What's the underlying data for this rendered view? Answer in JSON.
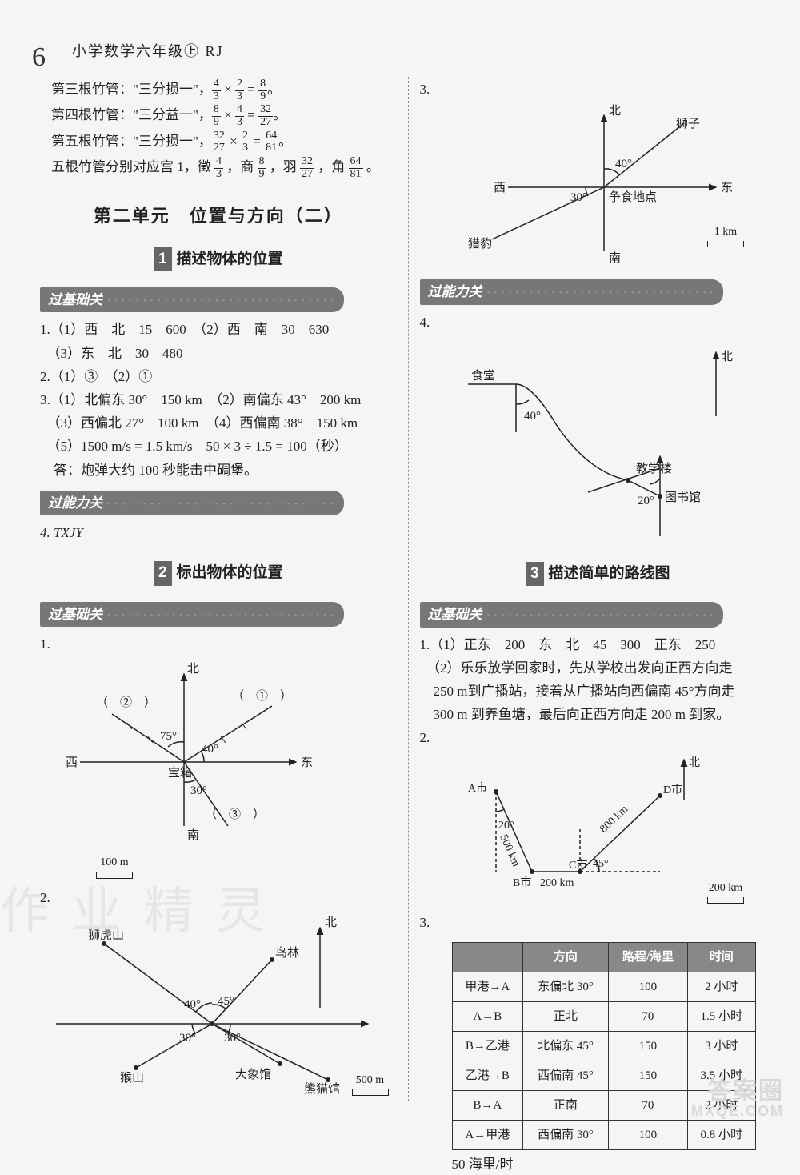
{
  "page_number": "6",
  "header": "小学数学六年级㊤ RJ",
  "intro_lines": [
    {
      "label": "第三根竹管：\"三分损一\"，",
      "frac1n": "4",
      "frac1d": "3",
      "op1": "×",
      "frac2n": "2",
      "frac2d": "3",
      "eq": "=",
      "frac3n": "8",
      "frac3d": "9",
      "tail": "。"
    },
    {
      "label": "第四根竹管：\"三分益一\"，",
      "frac1n": "8",
      "frac1d": "9",
      "op1": "×",
      "frac2n": "4",
      "frac2d": "3",
      "eq": "=",
      "frac3n": "32",
      "frac3d": "27",
      "tail": "。"
    },
    {
      "label": "第五根竹管：\"三分损一\"，",
      "frac1n": "32",
      "frac1d": "27",
      "op1": "×",
      "frac2n": "2",
      "frac2d": "3",
      "eq": "=",
      "frac3n": "64",
      "frac3d": "81",
      "tail": "。"
    }
  ],
  "intro_summary_prefix": "五根竹管分别对应宫 1，徵",
  "intro_s_f1n": "4",
  "intro_s_f1d": "3",
  "intro_s_mid1": "，商",
  "intro_s_f2n": "8",
  "intro_s_f2d": "9",
  "intro_s_mid2": "，羽",
  "intro_s_f3n": "32",
  "intro_s_f3d": "27",
  "intro_s_mid3": "，角",
  "intro_s_f4n": "64",
  "intro_s_f4d": "81",
  "intro_s_tail": "。",
  "unit_title": "第二单元　位置与方向（二）",
  "sect1_num": "1",
  "sect1_title": "描述物体的位置",
  "sect2_num": "2",
  "sect2_title": "标出物体的位置",
  "sect3_num": "3",
  "sect3_title": "描述简单的路线图",
  "tag_basic": "过基础关",
  "tag_skill": "过能力关",
  "left": {
    "q1_lines": [
      "1.（1）西　北　15　600　（2）西　南　30　630",
      "　（3）东　北　30　480"
    ],
    "q2": "2.（1）③　（2）①",
    "q3_lines": [
      "3.（1）北偏东 30°　150 km　（2）南偏东 43°　200 km",
      "　（3）西偏北 27°　100 km　（4）西偏南 38°　150 km",
      "　（5）1500 m/s = 1.5 km/s　50 × 3 ÷ 1.5 = 100（秒）",
      "　答：炮弹大约 100 秒能击中碉堡。"
    ],
    "q4": "4.  TXJY",
    "diagram1": {
      "title_q": "1.",
      "labels": {
        "N": "北",
        "S": "南",
        "E": "东",
        "W": "西",
        "center": "宝箱"
      },
      "angles": [
        "75°",
        "40°",
        "30°"
      ],
      "circled": [
        "②",
        "①",
        "③"
      ],
      "scale": "100 m"
    },
    "diagram2": {
      "title_q": "2.",
      "labels": {
        "N": "北",
        "lion": "狮虎山",
        "bird": "鸟林",
        "monkey": "猴山",
        "ele": "大象馆",
        "panda": "熊猫馆"
      },
      "angles": [
        "40°",
        "45°",
        "30°",
        "30°"
      ],
      "scale": "500 m"
    }
  },
  "right": {
    "diagram3": {
      "title_q": "3.",
      "labels": {
        "N": "北",
        "S": "南",
        "E": "东",
        "W": "西",
        "lion": "狮子",
        "leopard": "猎豹",
        "center": "争食地点"
      },
      "angles": [
        "40°",
        "30°"
      ],
      "scale": "1 km"
    },
    "diagram4": {
      "title_q": "4.",
      "labels": {
        "N": "北",
        "canteen": "食堂",
        "teach": "教学楼",
        "lib": "图书馆"
      },
      "angles": [
        "40°",
        "20°"
      ]
    },
    "sect3_q1": [
      "1.（1）正东　200　东　北　45　300　正东　250",
      "　（2）乐乐放学回家时，先从学校出发向正西方向走",
      "　250 m到广播站，接着从广播站向西偏南 45°方向走",
      "　300 m 到养鱼塘，最后向正西方向走 200 m 到家。"
    ],
    "diagram5": {
      "title_q": "2.",
      "labels": {
        "N": "北",
        "A": "A市",
        "B": "B市",
        "C": "C市",
        "D": "D市"
      },
      "edges": [
        "500 km",
        "800 km",
        "200 km"
      ],
      "angles": [
        "20°",
        "45°"
      ],
      "scale": "200 km"
    },
    "table": {
      "title_q": "3.",
      "headers": [
        "",
        "方向",
        "路程/海里",
        "时间"
      ],
      "rows": [
        [
          "甲港→A",
          "东偏北 30°",
          "100",
          "2 小时"
        ],
        [
          "A→B",
          "正北",
          "70",
          "1.5 小时"
        ],
        [
          "B→乙港",
          "北偏东 45°",
          "150",
          "3 小时"
        ],
        [
          "乙港→B",
          "西偏南 45°",
          "150",
          "3.5 小时"
        ],
        [
          "B→A",
          "正南",
          "70",
          "2 小时"
        ],
        [
          "A→甲港",
          "西偏南 30°",
          "100",
          "0.8 小时"
        ]
      ],
      "footer": "50 海里/时"
    }
  },
  "watermark1": "答案圈",
  "watermark2": "MXQE.COM",
  "ghost": "作业精灵"
}
